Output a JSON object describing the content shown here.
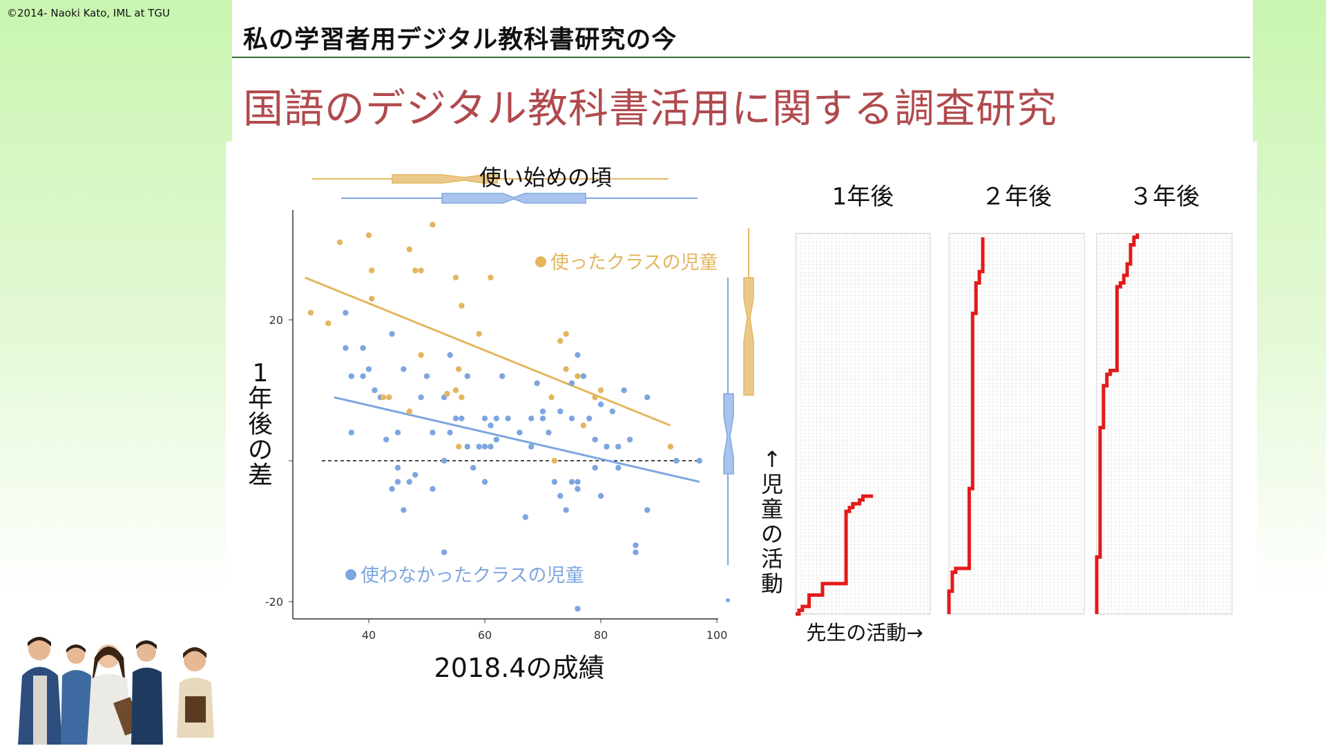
{
  "slide": {
    "copyright": "©2014- Naoki Kato, IML at TGU",
    "header_title": "私の学習者用デジタル教科書研究の今",
    "main_title": "国語のデジタル教科書活用に関する調査研究"
  },
  "colors": {
    "used": "#e3b65e",
    "notused": "#7da6e0",
    "activity": "#e31a1a",
    "title": "#b04a4e",
    "rule": "#2f6b2f"
  },
  "chart_data": [
    {
      "type": "scatter",
      "title": "使い始めの頃",
      "xlabel": "2018.4の成績",
      "ylabel": "1年後の差",
      "xlim": [
        28,
        100
      ],
      "ylim": [
        -22,
        33
      ],
      "x_ticks": [
        "40",
        "60",
        "80",
        "100"
      ],
      "y_ticks": [
        "20",
        "-20"
      ],
      "reference_line_y": 0,
      "grid": false,
      "series": [
        {
          "name": "使ったクラスの児童",
          "points": [
            [
              30,
              21
            ],
            [
              33,
              19.5
            ],
            [
              35,
              31
            ],
            [
              40,
              32
            ],
            [
              40.5,
              27
            ],
            [
              40.5,
              23
            ],
            [
              42.5,
              9
            ],
            [
              43.5,
              9
            ],
            [
              47,
              7
            ],
            [
              47,
              30
            ],
            [
              48,
              27
            ],
            [
              49,
              27
            ],
            [
              49,
              15
            ],
            [
              51,
              33.5
            ],
            [
              53.5,
              9.5
            ],
            [
              55,
              10
            ],
            [
              55,
              26
            ],
            [
              55.5,
              13
            ],
            [
              55.5,
              2
            ],
            [
              56,
              22
            ],
            [
              56,
              9
            ],
            [
              59,
              18
            ],
            [
              61,
              26
            ],
            [
              71.5,
              9
            ],
            [
              72,
              0
            ],
            [
              73,
              17
            ],
            [
              74,
              18
            ],
            [
              74,
              13
            ],
            [
              76,
              12
            ],
            [
              77,
              5
            ],
            [
              79,
              9
            ],
            [
              80,
              10
            ],
            [
              92,
              2
            ]
          ],
          "fit": {
            "x": [
              29,
              92
            ],
            "y": [
              26,
              5
            ]
          }
        },
        {
          "name": "使わなかったクラスの児童",
          "points": [
            [
              36,
              21
            ],
            [
              36,
              16
            ],
            [
              37,
              12
            ],
            [
              37,
              4
            ],
            [
              39,
              16
            ],
            [
              39,
              12
            ],
            [
              40,
              13
            ],
            [
              41,
              10
            ],
            [
              42,
              9
            ],
            [
              43,
              3
            ],
            [
              44,
              18
            ],
            [
              44,
              -4
            ],
            [
              45,
              -1
            ],
            [
              45,
              -3
            ],
            [
              45,
              4
            ],
            [
              46,
              13
            ],
            [
              46,
              -7
            ],
            [
              47,
              -3
            ],
            [
              48,
              -2
            ],
            [
              49,
              9
            ],
            [
              50,
              12
            ],
            [
              51,
              4
            ],
            [
              51,
              -4
            ],
            [
              53,
              0
            ],
            [
              53,
              9
            ],
            [
              53,
              -13
            ],
            [
              54,
              15
            ],
            [
              54,
              4
            ],
            [
              55,
              6
            ],
            [
              56,
              6
            ],
            [
              57,
              12
            ],
            [
              57,
              2
            ],
            [
              58,
              -1
            ],
            [
              59,
              2
            ],
            [
              60,
              2
            ],
            [
              60,
              6
            ],
            [
              60,
              -3
            ],
            [
              61,
              5
            ],
            [
              61,
              2
            ],
            [
              62,
              6
            ],
            [
              62,
              3
            ],
            [
              63,
              12
            ],
            [
              64,
              6
            ],
            [
              66,
              4
            ],
            [
              67,
              -8
            ],
            [
              68,
              2
            ],
            [
              68,
              6
            ],
            [
              69,
              11
            ],
            [
              70,
              6
            ],
            [
              70,
              7
            ],
            [
              71,
              4
            ],
            [
              72,
              -3
            ],
            [
              73,
              7
            ],
            [
              73,
              -5
            ],
            [
              74,
              -7
            ],
            [
              75,
              -3
            ],
            [
              75,
              6
            ],
            [
              75,
              11
            ],
            [
              76,
              -4
            ],
            [
              76,
              -3
            ],
            [
              76,
              15
            ],
            [
              76,
              -4
            ],
            [
              76,
              -21
            ],
            [
              77,
              12
            ],
            [
              78,
              6
            ],
            [
              79,
              3
            ],
            [
              79,
              -1
            ],
            [
              80,
              -5
            ],
            [
              80,
              8
            ],
            [
              81,
              2
            ],
            [
              82,
              7
            ],
            [
              83,
              -1
            ],
            [
              83,
              2
            ],
            [
              84,
              10
            ],
            [
              85,
              3
            ],
            [
              86,
              -12
            ],
            [
              86,
              -13
            ],
            [
              88,
              9
            ],
            [
              88,
              -7
            ],
            [
              93,
              0
            ],
            [
              97,
              0
            ]
          ],
          "fit": {
            "x": [
              34,
              97
            ],
            "y": [
              9,
              -3
            ]
          }
        }
      ]
    },
    {
      "type": "line",
      "panels": [
        {
          "title": "1年後",
          "steps": [
            [
              0,
              0
            ],
            [
              1,
              0
            ],
            [
              1,
              1
            ],
            [
              2,
              1
            ],
            [
              2,
              2
            ],
            [
              4,
              2
            ],
            [
              4,
              5
            ],
            [
              8,
              5
            ],
            [
              8,
              8
            ],
            [
              15,
              8
            ],
            [
              15,
              27
            ],
            [
              16,
              27
            ],
            [
              16,
              28
            ],
            [
              17,
              28
            ],
            [
              17,
              29
            ],
            [
              19,
              29
            ],
            [
              19,
              30
            ],
            [
              20,
              30
            ],
            [
              20,
              31
            ],
            [
              23,
              31
            ]
          ]
        },
        {
          "title": "２年後",
          "steps": [
            [
              0,
              0
            ],
            [
              0,
              6
            ],
            [
              1,
              6
            ],
            [
              1,
              11
            ],
            [
              2,
              11
            ],
            [
              2,
              12
            ],
            [
              6,
              12
            ],
            [
              6,
              33
            ],
            [
              7,
              33
            ],
            [
              7,
              79
            ],
            [
              8,
              79
            ],
            [
              8,
              87
            ],
            [
              9,
              87
            ],
            [
              9,
              90
            ],
            [
              10,
              90
            ],
            [
              10,
              99
            ]
          ]
        },
        {
          "title": "３年後",
          "steps": [
            [
              0,
              0
            ],
            [
              0,
              15
            ],
            [
              1,
              15
            ],
            [
              1,
              49
            ],
            [
              2,
              49
            ],
            [
              2,
              60
            ],
            [
              3,
              60
            ],
            [
              3,
              63
            ],
            [
              4,
              63
            ],
            [
              4,
              64
            ],
            [
              6,
              64
            ],
            [
              6,
              86
            ],
            [
              7,
              86
            ],
            [
              7,
              87
            ],
            [
              8,
              87
            ],
            [
              8,
              89
            ],
            [
              9,
              89
            ],
            [
              9,
              92
            ],
            [
              10,
              92
            ],
            [
              10,
              97
            ],
            [
              11,
              97
            ],
            [
              11,
              99
            ],
            [
              12,
              99
            ],
            [
              12,
              100
            ]
          ]
        }
      ],
      "xlabel": "先生の活動→",
      "ylabel": "↑児童の活動"
    }
  ]
}
